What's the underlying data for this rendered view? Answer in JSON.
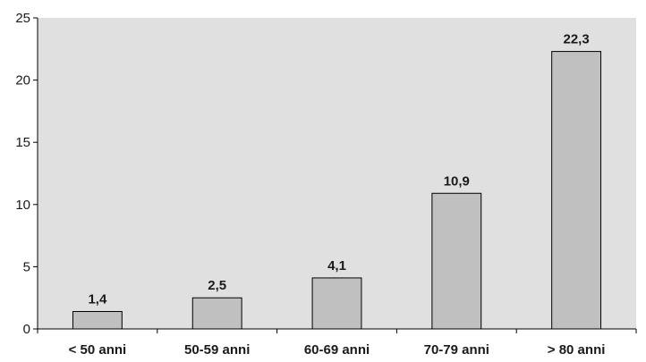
{
  "chart_data": {
    "type": "bar",
    "categories": [
      "< 50 anni",
      "50-59 anni",
      "60-69 anni",
      "70-79 anni",
      "> 80 anni"
    ],
    "values": [
      1.4,
      2.5,
      4.1,
      10.9,
      22.3
    ],
    "data_labels": [
      "1,4",
      "2,5",
      "4,1",
      "10,9",
      "22,3"
    ],
    "title": "",
    "xlabel": "",
    "ylabel": "",
    "ylim": [
      0,
      25
    ],
    "yticks": [
      0,
      5,
      10,
      15,
      20,
      25
    ],
    "grid": false,
    "colors": {
      "plot_background": "#e0e0e0",
      "bar_fill": "#c0c0c0",
      "bar_stroke": "#000000",
      "axis": "#000000"
    }
  }
}
